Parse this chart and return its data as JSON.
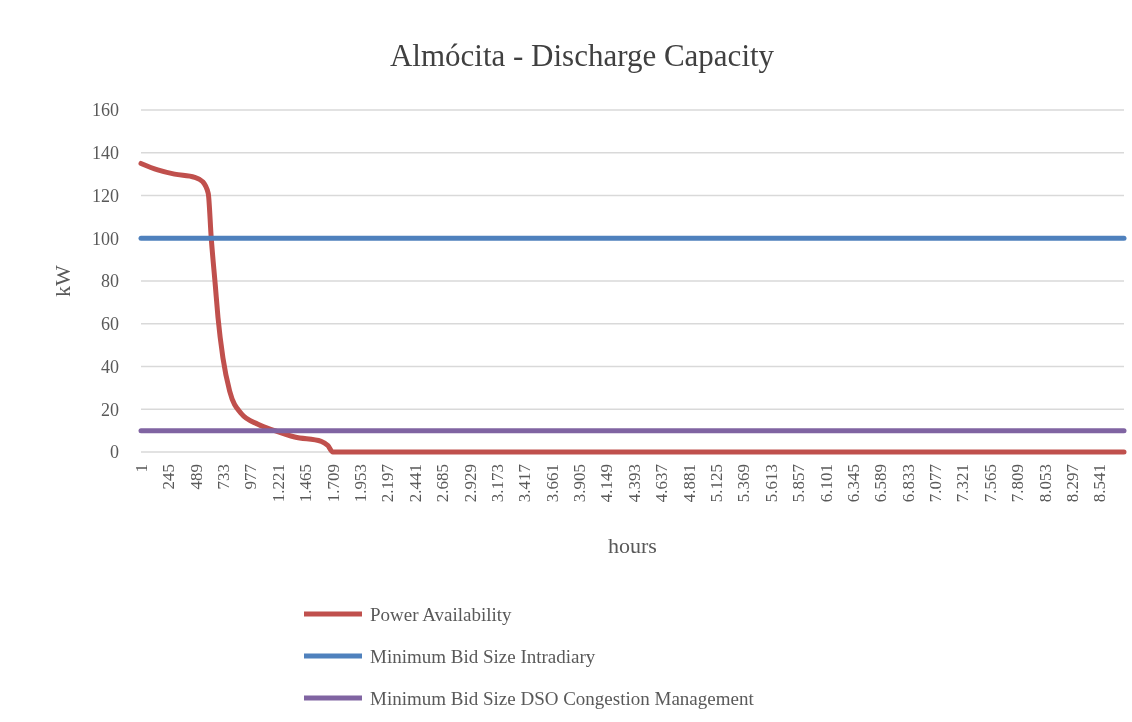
{
  "chart_data": {
    "type": "line",
    "title": "Almócita - Discharge Capacity",
    "xlabel": "hours",
    "ylabel": "kW",
    "xlim": [
      1,
      8760
    ],
    "ylim": [
      0,
      160
    ],
    "yticks": [
      0,
      20,
      40,
      60,
      80,
      100,
      120,
      140,
      160
    ],
    "xticks": [
      1,
      245,
      489,
      733,
      977,
      {
        "value": 1221,
        "label": "1.221"
      },
      {
        "value": 1465,
        "label": "1.465"
      },
      {
        "value": 1709,
        "label": "1.709"
      },
      {
        "value": 1953,
        "label": "1.953"
      },
      {
        "value": 2197,
        "label": "2.197"
      },
      {
        "value": 2441,
        "label": "2.441"
      },
      {
        "value": 2685,
        "label": "2.685"
      },
      {
        "value": 2929,
        "label": "2.929"
      },
      {
        "value": 3173,
        "label": "3.173"
      },
      {
        "value": 3417,
        "label": "3.417"
      },
      {
        "value": 3661,
        "label": "3.661"
      },
      {
        "value": 3905,
        "label": "3.905"
      },
      {
        "value": 4149,
        "label": "4.149"
      },
      {
        "value": 4393,
        "label": "4.393"
      },
      {
        "value": 4637,
        "label": "4.637"
      },
      {
        "value": 4881,
        "label": "4.881"
      },
      {
        "value": 5125,
        "label": "5.125"
      },
      {
        "value": 5369,
        "label": "5.369"
      },
      {
        "value": 5613,
        "label": "5.613"
      },
      {
        "value": 5857,
        "label": "5.857"
      },
      {
        "value": 6101,
        "label": "6.101"
      },
      {
        "value": 6345,
        "label": "6.345"
      },
      {
        "value": 6589,
        "label": "6.589"
      },
      {
        "value": 6833,
        "label": "6.833"
      },
      {
        "value": 7077,
        "label": "7.077"
      },
      {
        "value": 7321,
        "label": "7.321"
      },
      {
        "value": 7565,
        "label": "7.565"
      },
      {
        "value": 7809,
        "label": "7.809"
      },
      {
        "value": 8053,
        "label": "8.053"
      },
      {
        "value": 8297,
        "label": "8.297"
      },
      {
        "value": 8541,
        "label": "8.541"
      }
    ],
    "grid": "y",
    "legend": "bottom",
    "line_style": "solid",
    "series": [
      {
        "name": "Power Availability",
        "color": "#c0504d",
        "x": [
          1,
          150,
          300,
          480,
          550,
          600,
          627,
          663,
          687,
          731,
          791,
          894,
          1043,
          1192,
          1370,
          1607,
          1666,
          1710,
          8760
        ],
        "values": [
          135,
          132,
          130,
          128.5,
          126.5,
          121,
          100,
          78,
          63,
          44,
          28.5,
          18,
          13,
          10,
          7,
          5,
          3,
          0,
          0
        ]
      },
      {
        "name": "Minimum Bid Size Intradiary",
        "color": "#4f81bd",
        "x": [
          1,
          8760
        ],
        "values": [
          100,
          100
        ]
      },
      {
        "name": "Minimum Bid Size DSO Congestion Management",
        "color": "#8064a2",
        "x": [
          1,
          8760
        ],
        "values": [
          10,
          10
        ]
      }
    ]
  }
}
